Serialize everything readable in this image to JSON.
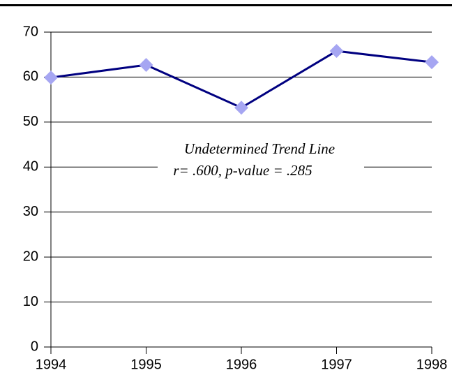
{
  "chart_data": {
    "type": "line",
    "x": [
      1994,
      1995,
      1996,
      1997,
      1998
    ],
    "values": [
      59.9,
      62.7,
      53.2,
      65.8,
      63.3
    ],
    "color": "#000080",
    "marker_color": "#a6a6f2",
    "xlim": [
      1994,
      1998
    ],
    "xticks": [
      1994,
      1995,
      1996,
      1997,
      1998
    ],
    "ylim": [
      0,
      70
    ],
    "yticks": [
      0,
      10,
      20,
      30,
      40,
      50,
      60,
      70
    ],
    "grid": true,
    "annotations": [
      "Undetermined Trend Line",
      "r= .600, p-value = .285"
    ]
  }
}
